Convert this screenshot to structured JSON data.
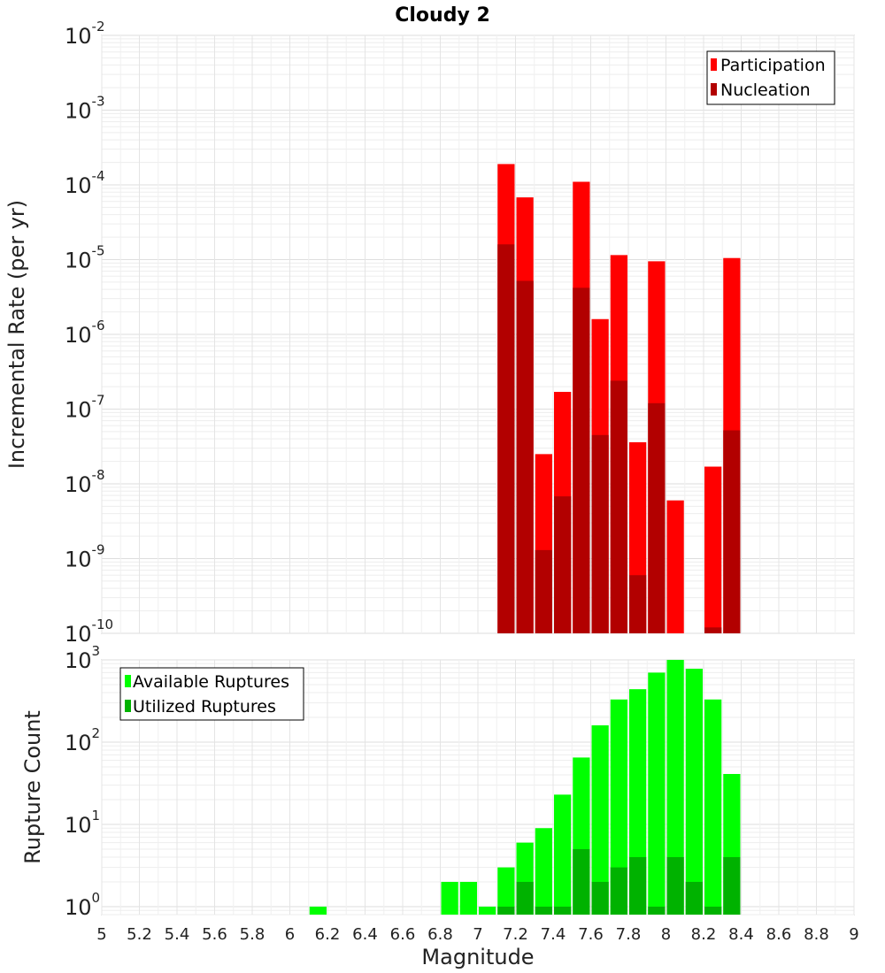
{
  "chart_data": [
    {
      "type": "bar",
      "title": "Cloudy 2",
      "ylabel": "Incremental Rate (per yr)",
      "yscale": "log",
      "ylim": [
        1e-10,
        0.01
      ],
      "yticks": [
        {
          "base": "10",
          "exp": "-2",
          "value": 0.01
        },
        {
          "base": "10",
          "exp": "-3",
          "value": 0.001
        },
        {
          "base": "10",
          "exp": "-4",
          "value": 0.0001
        },
        {
          "base": "10",
          "exp": "-5",
          "value": 1e-05
        },
        {
          "base": "10",
          "exp": "-6",
          "value": 1e-06
        },
        {
          "base": "10",
          "exp": "-7",
          "value": 1e-07
        },
        {
          "base": "10",
          "exp": "-8",
          "value": 1e-08
        },
        {
          "base": "10",
          "exp": "-9",
          "value": 1e-09
        },
        {
          "base": "10",
          "exp": "-10",
          "value": 1e-10
        }
      ],
      "legend": {
        "placement": "top-right"
      },
      "series": [
        {
          "name": "Participation",
          "color": "#ff0000",
          "points": [
            {
              "x": 7.15,
              "y": 0.00019
            },
            {
              "x": 7.25,
              "y": 6.8e-05
            },
            {
              "x": 7.35,
              "y": 2.5e-08
            },
            {
              "x": 7.45,
              "y": 1.7e-07
            },
            {
              "x": 7.55,
              "y": 0.00011
            },
            {
              "x": 7.65,
              "y": 1.6e-06
            },
            {
              "x": 7.75,
              "y": 1.15e-05
            },
            {
              "x": 7.85,
              "y": 3.6e-08
            },
            {
              "x": 7.95,
              "y": 9.5e-06
            },
            {
              "x": 8.05,
              "y": 6e-09
            },
            {
              "x": 8.25,
              "y": 1.7e-08
            },
            {
              "x": 8.35,
              "y": 1.05e-05
            }
          ]
        },
        {
          "name": "Nucleation",
          "color": "#b20000",
          "points": [
            {
              "x": 7.15,
              "y": 1.6e-05
            },
            {
              "x": 7.25,
              "y": 5.2e-06
            },
            {
              "x": 7.35,
              "y": 1.3e-09
            },
            {
              "x": 7.45,
              "y": 6.8e-09
            },
            {
              "x": 7.55,
              "y": 4.2e-06
            },
            {
              "x": 7.65,
              "y": 4.5e-08
            },
            {
              "x": 7.75,
              "y": 2.4e-07
            },
            {
              "x": 7.85,
              "y": 6e-10
            },
            {
              "x": 7.95,
              "y": 1.2e-07
            },
            {
              "x": 8.25,
              "y": 1.2e-10
            },
            {
              "x": 8.35,
              "y": 5.2e-08
            }
          ]
        }
      ]
    },
    {
      "type": "bar",
      "ylabel": "Rupture Count",
      "xlabel": "Magnitude",
      "yscale": "log",
      "ylim": [
        0.8,
        1000
      ],
      "xlim": [
        5,
        9
      ],
      "xticks": [
        "5",
        "5.2",
        "5.4",
        "5.6",
        "5.8",
        "6",
        "6.2",
        "6.4",
        "6.6",
        "6.8",
        "7",
        "7.2",
        "7.4",
        "7.6",
        "7.8",
        "8",
        "8.2",
        "8.4",
        "8.6",
        "8.8",
        "9"
      ],
      "yticks": [
        {
          "base": "10",
          "exp": "3",
          "value": 1000
        },
        {
          "base": "10",
          "exp": "2",
          "value": 100
        },
        {
          "base": "10",
          "exp": "1",
          "value": 10
        },
        {
          "base": "10",
          "exp": "0",
          "value": 1
        }
      ],
      "legend": {
        "placement": "top-left"
      },
      "series": [
        {
          "name": "Available Ruptures",
          "color": "#00ff00",
          "points": [
            {
              "x": 6.15,
              "y": 1
            },
            {
              "x": 6.85,
              "y": 2
            },
            {
              "x": 6.95,
              "y": 2
            },
            {
              "x": 7.05,
              "y": 1
            },
            {
              "x": 7.15,
              "y": 3
            },
            {
              "x": 7.25,
              "y": 6
            },
            {
              "x": 7.35,
              "y": 9
            },
            {
              "x": 7.45,
              "y": 23
            },
            {
              "x": 7.55,
              "y": 65
            },
            {
              "x": 7.65,
              "y": 160
            },
            {
              "x": 7.75,
              "y": 330
            },
            {
              "x": 7.85,
              "y": 440
            },
            {
              "x": 7.95,
              "y": 700
            },
            {
              "x": 8.05,
              "y": 1000
            },
            {
              "x": 8.15,
              "y": 780
            },
            {
              "x": 8.25,
              "y": 330
            },
            {
              "x": 8.35,
              "y": 41
            }
          ]
        },
        {
          "name": "Utilized Ruptures",
          "color": "#00b200",
          "points": [
            {
              "x": 7.15,
              "y": 1
            },
            {
              "x": 7.25,
              "y": 2
            },
            {
              "x": 7.35,
              "y": 1
            },
            {
              "x": 7.45,
              "y": 1
            },
            {
              "x": 7.55,
              "y": 5
            },
            {
              "x": 7.65,
              "y": 2
            },
            {
              "x": 7.75,
              "y": 3
            },
            {
              "x": 7.85,
              "y": 4
            },
            {
              "x": 7.95,
              "y": 1
            },
            {
              "x": 8.05,
              "y": 4
            },
            {
              "x": 8.15,
              "y": 2
            },
            {
              "x": 8.25,
              "y": 1
            },
            {
              "x": 8.35,
              "y": 4
            }
          ]
        }
      ]
    }
  ]
}
